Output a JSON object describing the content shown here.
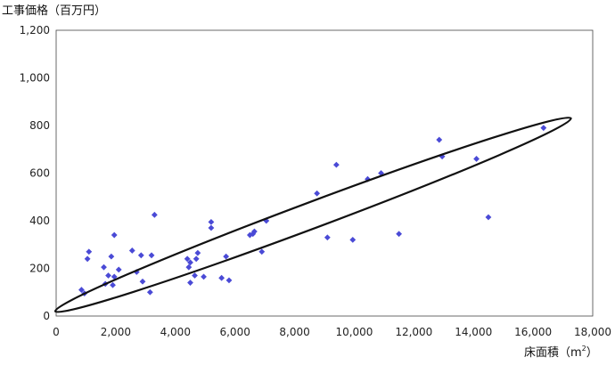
{
  "chart_data": {
    "type": "scatter",
    "ylabel": "工事価格（百万円）",
    "xlabel": "床面積（m",
    "xlabel_sup": "2",
    "xlabel_close": "）",
    "xlim": [
      0,
      18000
    ],
    "ylim": [
      0,
      1200
    ],
    "x_ticks": [
      0,
      2000,
      4000,
      6000,
      8000,
      10000,
      12000,
      14000,
      16000,
      18000
    ],
    "y_ticks": [
      0,
      200,
      400,
      600,
      800,
      1000,
      1200
    ],
    "x_tick_labels": [
      "0",
      "2,000",
      "4,000",
      "6,000",
      "8,000",
      "10,000",
      "12,000",
      "14,000",
      "16,000",
      "18,000"
    ],
    "y_tick_labels": [
      "0",
      "200",
      "400",
      "600",
      "800",
      "1,000",
      "1,200"
    ],
    "grid": false,
    "legend": "none",
    "marker_color": "#4a4ad6",
    "marker": "diamond",
    "series": [
      {
        "points": [
          [
            850,
            110
          ],
          [
            950,
            95
          ],
          [
            1050,
            240
          ],
          [
            1100,
            270
          ],
          [
            1600,
            205
          ],
          [
            1650,
            135
          ],
          [
            1750,
            170
          ],
          [
            1850,
            250
          ],
          [
            1900,
            130
          ],
          [
            1950,
            340
          ],
          [
            1950,
            165
          ],
          [
            2100,
            195
          ],
          [
            2550,
            275
          ],
          [
            2700,
            185
          ],
          [
            2850,
            255
          ],
          [
            2900,
            145
          ],
          [
            3150,
            100
          ],
          [
            3200,
            255
          ],
          [
            3300,
            425
          ],
          [
            4400,
            240
          ],
          [
            4450,
            205
          ],
          [
            4500,
            225
          ],
          [
            4500,
            140
          ],
          [
            4650,
            170
          ],
          [
            4700,
            240
          ],
          [
            4750,
            265
          ],
          [
            4950,
            165
          ],
          [
            5200,
            395
          ],
          [
            5200,
            370
          ],
          [
            5550,
            160
          ],
          [
            5700,
            250
          ],
          [
            5800,
            150
          ],
          [
            6500,
            340
          ],
          [
            6600,
            345
          ],
          [
            6650,
            355
          ],
          [
            6900,
            270
          ],
          [
            7050,
            400
          ],
          [
            8750,
            515
          ],
          [
            9100,
            330
          ],
          [
            9400,
            635
          ],
          [
            10450,
            575
          ],
          [
            10900,
            600
          ],
          [
            11500,
            345
          ],
          [
            12850,
            740
          ],
          [
            12950,
            670
          ],
          [
            14100,
            660
          ],
          [
            14500,
            415
          ],
          [
            16350,
            790
          ],
          [
            9950,
            320
          ]
        ]
      }
    ],
    "annotations": [
      {
        "type": "ellipse",
        "center": [
          8620,
          425
        ],
        "semi_major_x": 8650,
        "semi_major_y": 405,
        "thickness_y": 55
      }
    ]
  }
}
